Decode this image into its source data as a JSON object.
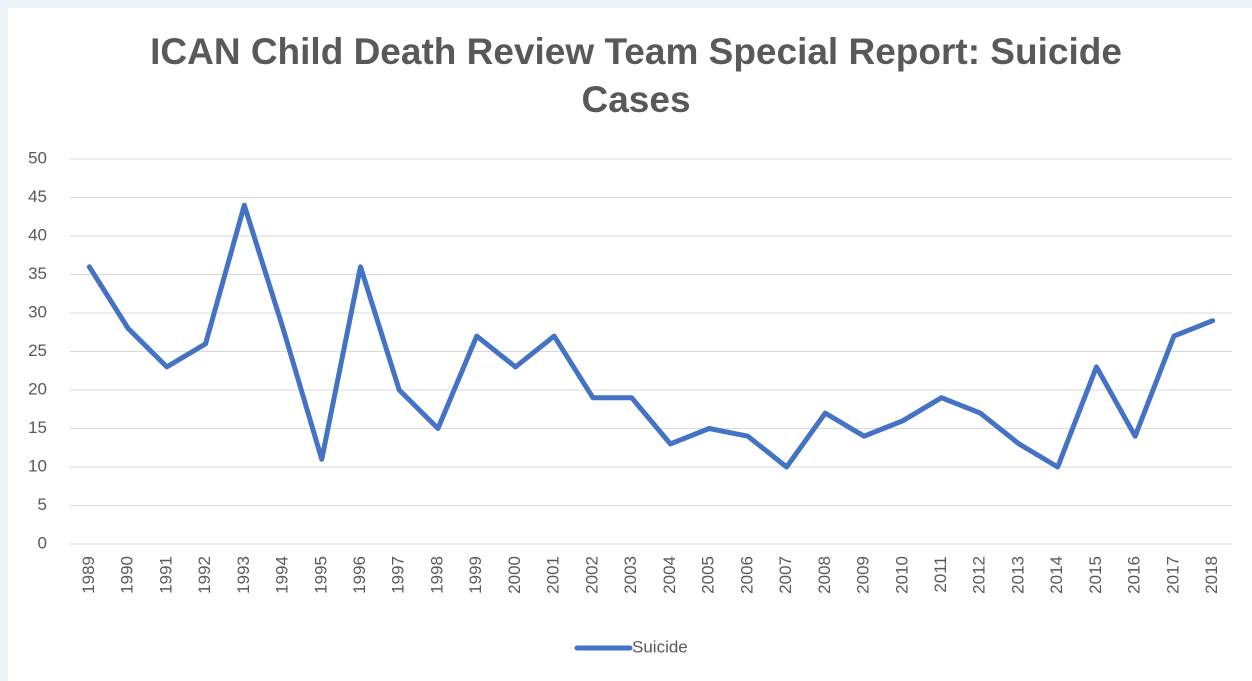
{
  "chart_data": {
    "type": "line",
    "title": "ICAN Child Death Review Team Special Report: Suicide Cases",
    "categories": [
      "1989",
      "1990",
      "1991",
      "1992",
      "1993",
      "1994",
      "1995",
      "1996",
      "1997",
      "1998",
      "1999",
      "2000",
      "2001",
      "2002",
      "2003",
      "2004",
      "2005",
      "2006",
      "2007",
      "2008",
      "2009",
      "2010",
      "2011",
      "2012",
      "2013",
      "2014",
      "2015",
      "2016",
      "2017",
      "2018"
    ],
    "series": [
      {
        "name": "Suicide",
        "color": "#4472c4",
        "values": [
          36,
          28,
          23,
          26,
          44,
          28,
          11,
          36,
          20,
          15,
          27,
          23,
          27,
          19,
          19,
          13,
          15,
          14,
          10,
          17,
          14,
          16,
          19,
          17,
          13,
          10,
          23,
          14,
          27,
          29
        ]
      }
    ],
    "ylim": [
      0,
      50
    ],
    "yticks": [
      0,
      5,
      10,
      15,
      20,
      25,
      30,
      35,
      40,
      45,
      50
    ],
    "grid": true,
    "legend": "bottom"
  }
}
